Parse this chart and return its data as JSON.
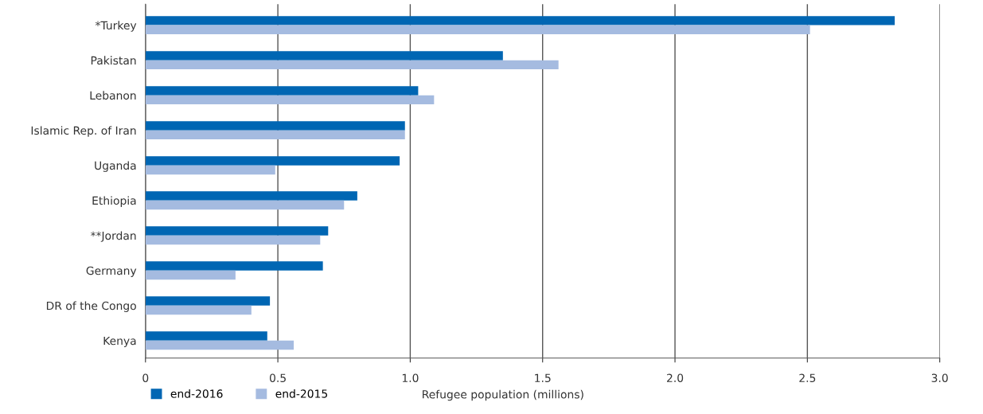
{
  "chart_data": {
    "type": "bar",
    "orientation": "horizontal",
    "xlabel": "Refugee population (millions)",
    "categories": [
      "*Turkey",
      "Pakistan",
      "Lebanon",
      "Islamic Rep. of Iran",
      "Uganda",
      "Ethiopia",
      "**Jordan",
      "Germany",
      "DR of the Congo",
      "Kenya"
    ],
    "series": [
      {
        "name": "end-2016",
        "color": "#0066b3",
        "values": [
          2.83,
          1.35,
          1.03,
          0.98,
          0.96,
          0.8,
          0.69,
          0.67,
          0.47,
          0.46
        ]
      },
      {
        "name": "end-2015",
        "color": "#a5bbe0",
        "values": [
          2.51,
          1.56,
          1.09,
          0.98,
          0.49,
          0.75,
          0.66,
          0.34,
          0.4,
          0.56
        ]
      }
    ],
    "xlim": [
      0,
      3.0
    ],
    "xticks": [
      {
        "value": 0,
        "label": "0"
      },
      0.5,
      {
        "value": 1,
        "label": "1.0"
      },
      1.5,
      {
        "value": 2,
        "label": "2.0"
      },
      2.5,
      {
        "value": 3,
        "label": "3.0"
      }
    ],
    "grid": "x",
    "legend": "bottom left"
  }
}
